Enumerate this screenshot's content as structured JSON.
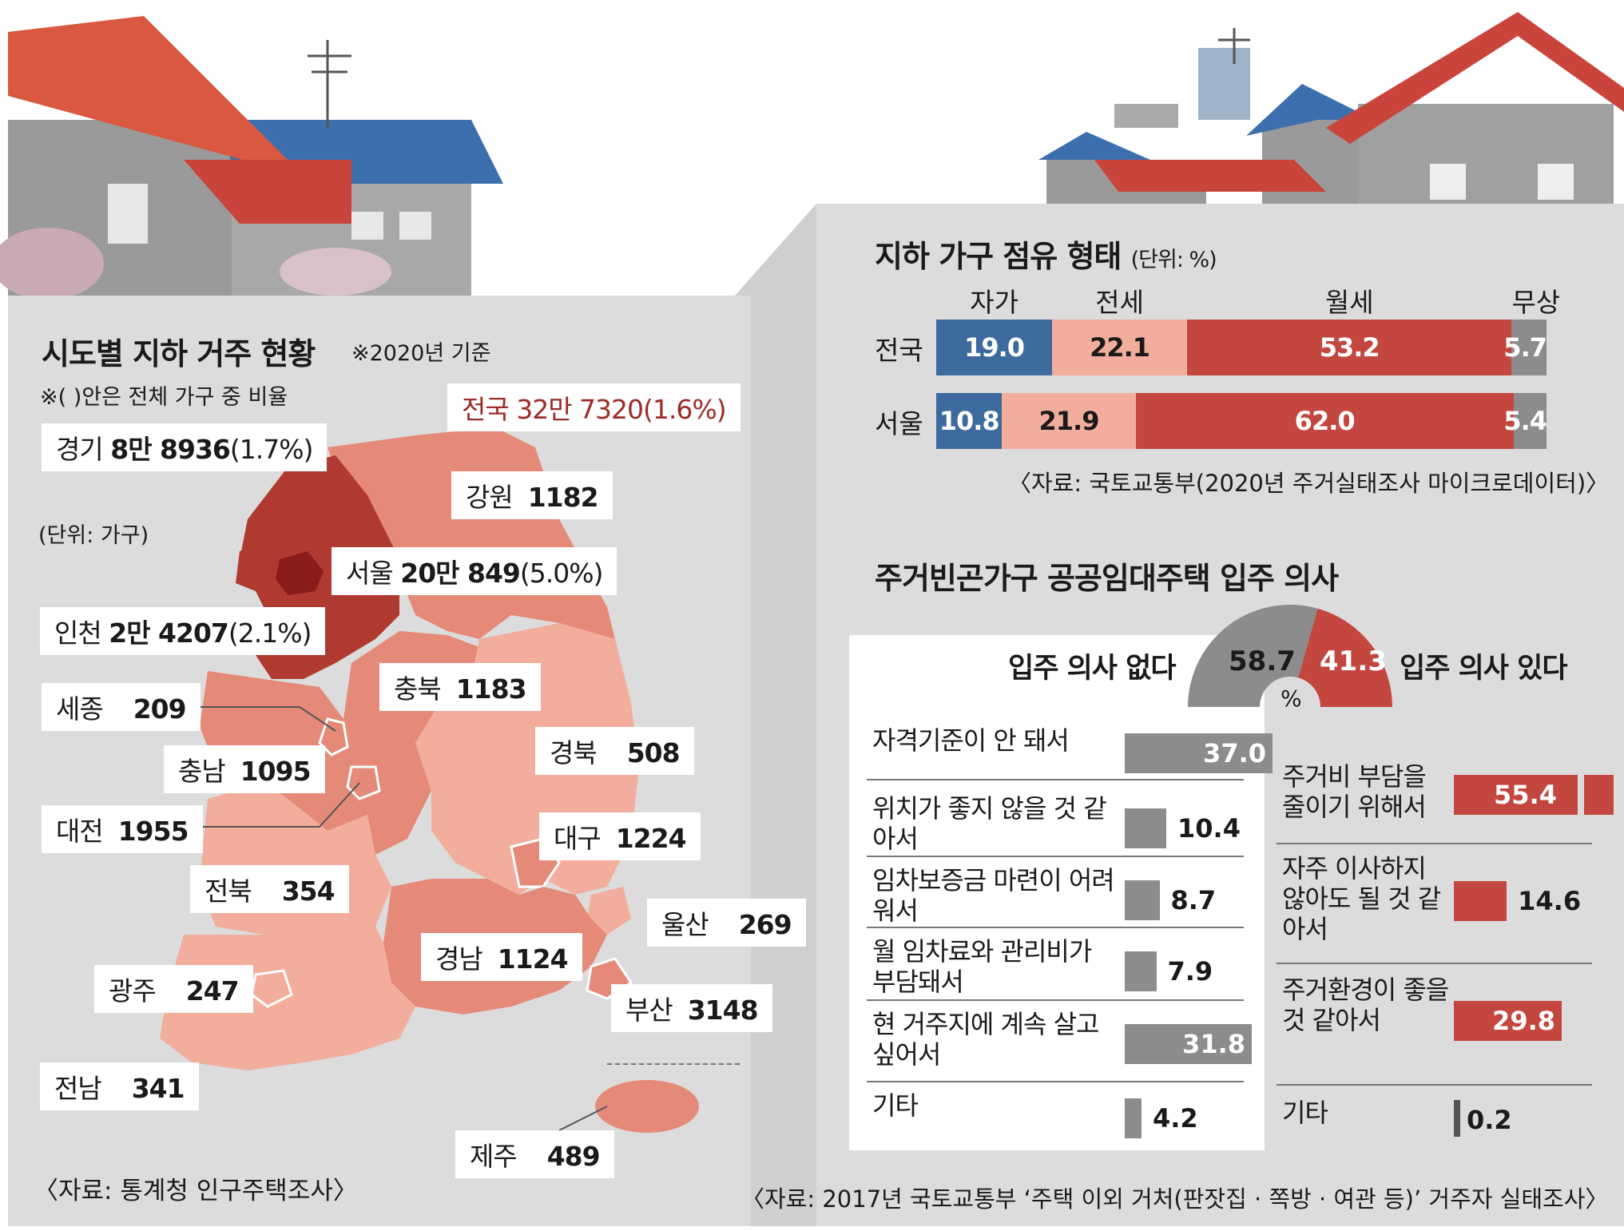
{
  "left": {
    "title": "시도별 지하 거주 현황",
    "basis": "※2020년 기준",
    "note": "※(   )안은 전체 가구 중 비율",
    "unit": "(단위: 가구)",
    "source": "〈자료: 통계청 인구주택조사〉",
    "national": "전국 32만 7320(1.6%)",
    "regions": [
      {
        "name": "경기",
        "value": "8만 8936",
        "pct": "(1.7%)"
      },
      {
        "name": "강원",
        "value": "1182",
        "pct": ""
      },
      {
        "name": "서울",
        "value": "20만 849",
        "pct": "(5.0%)"
      },
      {
        "name": "인천",
        "value": "2만 4207",
        "pct": "(2.1%)"
      },
      {
        "name": "충북",
        "value": "1183",
        "pct": ""
      },
      {
        "name": "세종",
        "value": "209",
        "pct": ""
      },
      {
        "name": "충남",
        "value": "1095",
        "pct": ""
      },
      {
        "name": "경북",
        "value": "508",
        "pct": ""
      },
      {
        "name": "대전",
        "value": "1955",
        "pct": ""
      },
      {
        "name": "대구",
        "value": "1224",
        "pct": ""
      },
      {
        "name": "전북",
        "value": "354",
        "pct": ""
      },
      {
        "name": "울산",
        "value": "269",
        "pct": ""
      },
      {
        "name": "경남",
        "value": "1124",
        "pct": ""
      },
      {
        "name": "광주",
        "value": "247",
        "pct": ""
      },
      {
        "name": "부산",
        "value": "3148",
        "pct": ""
      },
      {
        "name": "전남",
        "value": "341",
        "pct": ""
      },
      {
        "name": "제주",
        "value": "489",
        "pct": ""
      }
    ]
  },
  "tenure": {
    "title": "지하 가구 점유 형태",
    "unit": "(단위: %)",
    "source": "〈자료: 국토교통부(2020년 주거실태조사 마이크로데이터)〉"
  },
  "intent": {
    "title": "주거빈곤가구 공공임대주택 입주 의사",
    "no_label": "입주 의사 없다",
    "yes_label": "입주 의사 있다",
    "pct_symbol": "%",
    "source": "〈자료: 2017년 국토교통부 ‘주택 이외 거처(판잣집 · 쪽방 · 여관 등)’ 거주자 실태조사〉"
  },
  "chart_data": [
    {
      "type": "map",
      "title": "시도별 지하 거주 현황",
      "unit": "가구",
      "total": {
        "label": "전국",
        "value": 327320,
        "pct": 1.6
      },
      "regions": [
        {
          "name": "경기",
          "value": 88936,
          "pct": 1.7
        },
        {
          "name": "강원",
          "value": 1182
        },
        {
          "name": "서울",
          "value": 200849,
          "pct": 5.0
        },
        {
          "name": "인천",
          "value": 24207,
          "pct": 2.1
        },
        {
          "name": "충북",
          "value": 1183
        },
        {
          "name": "세종",
          "value": 209
        },
        {
          "name": "충남",
          "value": 1095
        },
        {
          "name": "경북",
          "value": 508
        },
        {
          "name": "대전",
          "value": 1955
        },
        {
          "name": "대구",
          "value": 1224
        },
        {
          "name": "전북",
          "value": 354
        },
        {
          "name": "울산",
          "value": 269
        },
        {
          "name": "경남",
          "value": 1124
        },
        {
          "name": "광주",
          "value": 247
        },
        {
          "name": "부산",
          "value": 3148
        },
        {
          "name": "전남",
          "value": 341
        },
        {
          "name": "제주",
          "value": 489
        }
      ]
    },
    {
      "type": "bar",
      "stacked": true,
      "orientation": "horizontal",
      "title": "지하 가구 점유 형태",
      "unit": "%",
      "categories": [
        "전국",
        "서울"
      ],
      "series": [
        {
          "name": "자가",
          "values": [
            19.0,
            10.8
          ],
          "color": "#3d6b9e"
        },
        {
          "name": "전세",
          "values": [
            22.1,
            21.9
          ],
          "color": "#f2ad9c"
        },
        {
          "name": "월세",
          "values": [
            53.2,
            62.0
          ],
          "color": "#c4473f"
        },
        {
          "name": "무상",
          "values": [
            5.7,
            5.4
          ],
          "color": "#8c8c8c"
        }
      ],
      "value_labels": [
        [
          "19.0",
          "22.1",
          "53.2",
          "5.7"
        ],
        [
          "10.8",
          "21.9",
          "62.0",
          "5.4"
        ]
      ]
    },
    {
      "type": "pie",
      "half": true,
      "title": "주거빈곤가구 공공임대주택 입주 의사",
      "unit": "%",
      "slices": [
        {
          "label": "입주 의사 없다",
          "value": 58.7,
          "text": "58.7",
          "color": "#8c8c8c"
        },
        {
          "label": "입주 의사 있다",
          "value": 41.3,
          "text": "41.3",
          "color": "#c4473f"
        }
      ]
    },
    {
      "type": "bar",
      "orientation": "horizontal",
      "title": "입주 의사 없다 이유",
      "unit": "%",
      "items": [
        {
          "label": "자격기준이 안 돼서",
          "value": 37.0,
          "text": "37.0"
        },
        {
          "label": "위치가 좋지 않을 것 같아서",
          "value": 10.4,
          "text": "10.4"
        },
        {
          "label": "임차보증금 마련이 어려워서",
          "value": 8.7,
          "text": "8.7"
        },
        {
          "label": "월 임차료와 관리비가 부담돼서",
          "value": 7.9,
          "text": "7.9"
        },
        {
          "label": "현 거주지에 계속 살고 싶어서",
          "value": 31.8,
          "text": "31.8"
        },
        {
          "label": "기타",
          "value": 4.2,
          "text": "4.2"
        }
      ],
      "color": "#8c8c8c"
    },
    {
      "type": "bar",
      "orientation": "horizontal",
      "title": "입주 의사 있다 이유",
      "unit": "%",
      "items": [
        {
          "label": "주거비 부담을 줄이기 위해서",
          "value": 55.4,
          "text": "55.4"
        },
        {
          "label": "자주 이사하지 않아도 될 것 같아서",
          "value": 14.6,
          "text": "14.6"
        },
        {
          "label": "주거환경이 좋을 것 같아서",
          "value": 29.8,
          "text": "29.8"
        },
        {
          "label": "기타",
          "value": 0.2,
          "text": "0.2"
        }
      ],
      "color": "#c4473f"
    }
  ]
}
